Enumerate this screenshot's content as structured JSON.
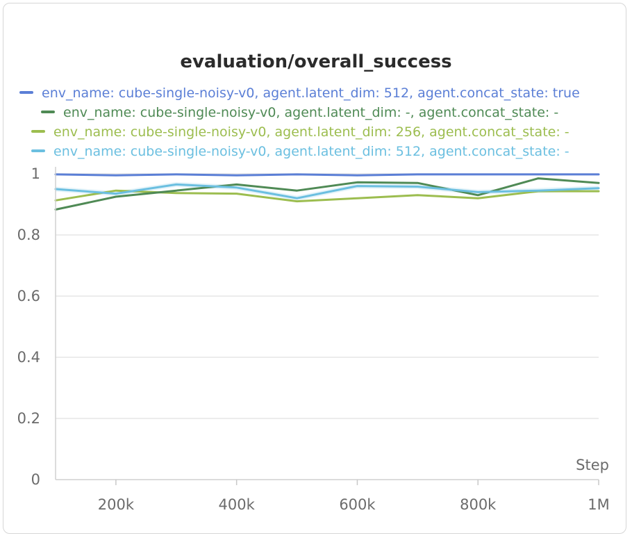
{
  "chart_data": {
    "type": "line",
    "title": "evaluation/overall_success",
    "xlabel": "Step",
    "ylabel": "",
    "xlim": [
      100000,
      1000000
    ],
    "ylim": [
      0,
      1
    ],
    "grid": true,
    "legend_position": "top",
    "x_ticks": [
      {
        "value": 200000,
        "label": "200k"
      },
      {
        "value": 400000,
        "label": "400k"
      },
      {
        "value": 600000,
        "label": "600k"
      },
      {
        "value": 800000,
        "label": "800k"
      },
      {
        "value": 1000000,
        "label": "1M"
      }
    ],
    "y_ticks": [
      {
        "value": 0,
        "label": "0"
      },
      {
        "value": 0.2,
        "label": "0.2"
      },
      {
        "value": 0.4,
        "label": "0.4"
      },
      {
        "value": 0.6,
        "label": "0.6"
      },
      {
        "value": 0.8,
        "label": "0.8"
      },
      {
        "value": 1.0,
        "label": "1"
      }
    ],
    "x": [
      100000,
      200000,
      300000,
      400000,
      500000,
      600000,
      700000,
      800000,
      900000,
      1000000
    ],
    "series": [
      {
        "name": "env_name: cube-single-noisy-v0, agent.latent_dim: 512, agent.concat_state: true",
        "color": "#5b7fd6",
        "values": [
          0.998,
          0.995,
          0.998,
          0.995,
          0.998,
          0.995,
          0.998,
          0.998,
          0.998,
          0.998
        ]
      },
      {
        "name": "env_name: cube-single-noisy-v0, agent.latent_dim: -, agent.concat_state: -",
        "color": "#4f8a55",
        "values": [
          0.883,
          0.925,
          0.945,
          0.965,
          0.945,
          0.972,
          0.97,
          0.93,
          0.985,
          0.97
        ]
      },
      {
        "name": "env_name: cube-single-noisy-v0, agent.latent_dim: 256, agent.concat_state: -",
        "color": "#9cbd4f",
        "values": [
          0.913,
          0.945,
          0.937,
          0.935,
          0.91,
          0.92,
          0.93,
          0.92,
          0.943,
          0.943
        ]
      },
      {
        "name": "env_name: cube-single-noisy-v0, agent.latent_dim: 512, agent.concat_state: -",
        "color": "#6bbfe0",
        "values": [
          0.95,
          0.935,
          0.965,
          0.955,
          0.92,
          0.96,
          0.958,
          0.94,
          0.945,
          0.953
        ]
      }
    ]
  }
}
